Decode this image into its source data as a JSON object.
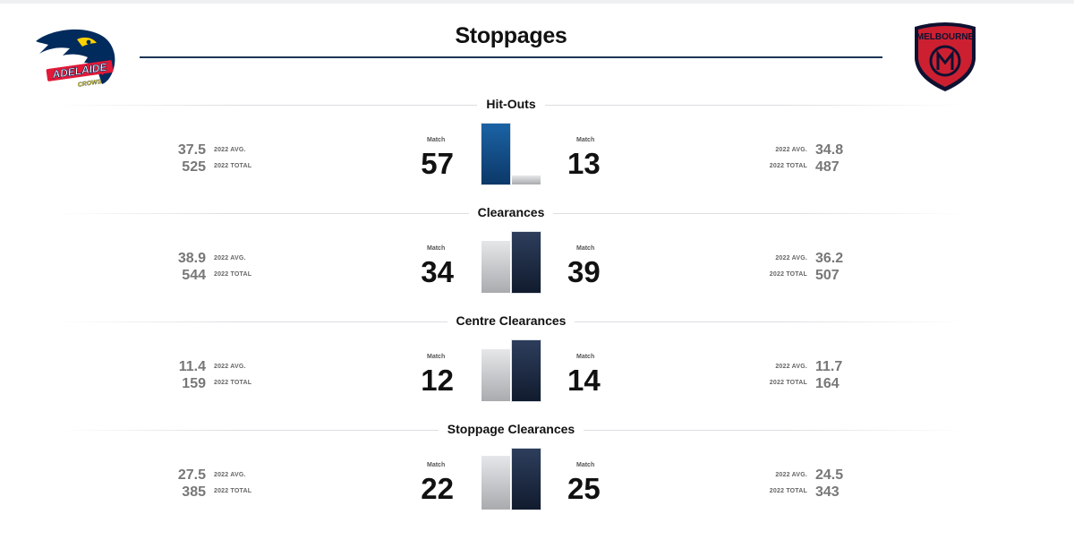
{
  "header": {
    "title": "Stoppages"
  },
  "teams": {
    "home": {
      "name": "Adelaide Crows",
      "logo_text": "ADELAIDE",
      "logo_subtext": "CROWS",
      "colors": {
        "navy": "#002b5c",
        "red": "#e21937",
        "gold": "#ffd200"
      }
    },
    "away": {
      "name": "Melbourne",
      "logo_text": "MELBOURNE",
      "colors": {
        "navy": "#0f1131",
        "red": "#cc2031"
      }
    }
  },
  "labels": {
    "match": "Match",
    "avg": "2022 AVG.",
    "total": "2022 TOTAL"
  },
  "sections": [
    {
      "title": "Hit-Outs",
      "home": {
        "match": "57",
        "avg": "37.5",
        "total": "525"
      },
      "away": {
        "match": "13",
        "avg": "34.8",
        "total": "487"
      }
    },
    {
      "title": "Clearances",
      "home": {
        "match": "34",
        "avg": "38.9",
        "total": "544"
      },
      "away": {
        "match": "39",
        "avg": "36.2",
        "total": "507"
      }
    },
    {
      "title": "Centre Clearances",
      "home": {
        "match": "12",
        "avg": "11.4",
        "total": "159"
      },
      "away": {
        "match": "14",
        "avg": "11.7",
        "total": "164"
      }
    },
    {
      "title": "Stoppage Clearances",
      "home": {
        "match": "22",
        "avg": "27.5",
        "total": "385"
      },
      "away": {
        "match": "25",
        "avg": "24.5",
        "total": "343"
      }
    }
  ]
}
